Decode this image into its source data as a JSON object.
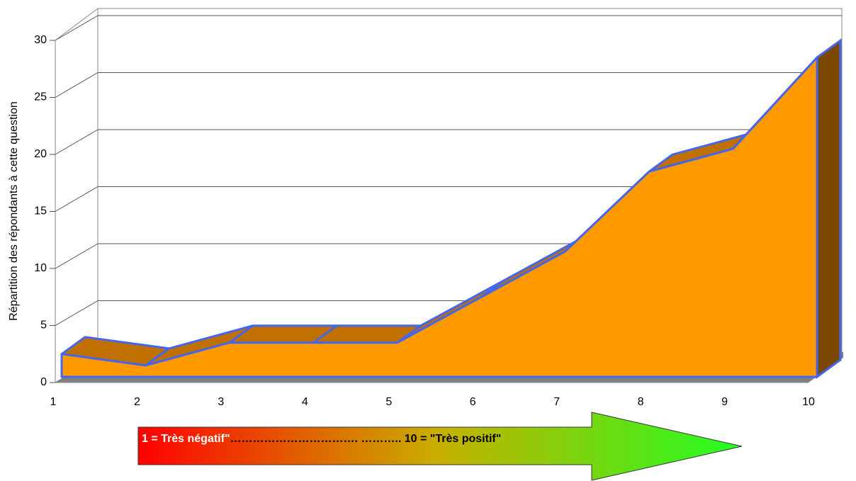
{
  "chart_data": {
    "type": "area3d",
    "y_label": "Répartition des répondants à cette question",
    "categories": [
      1,
      2,
      3,
      4,
      5,
      6,
      7,
      8,
      9,
      10
    ],
    "values": [
      2,
      1,
      3,
      3,
      3,
      7,
      11,
      18,
      20,
      28
    ],
    "color": "#ff9900",
    "ylim": [
      0,
      30
    ],
    "yticks": [
      0,
      5,
      10,
      15,
      20,
      25,
      30
    ],
    "grid": true,
    "annotations": [
      "1 = Très négatif\"",
      "……………………………. ……….. 10 = \"Très positif\""
    ]
  }
}
